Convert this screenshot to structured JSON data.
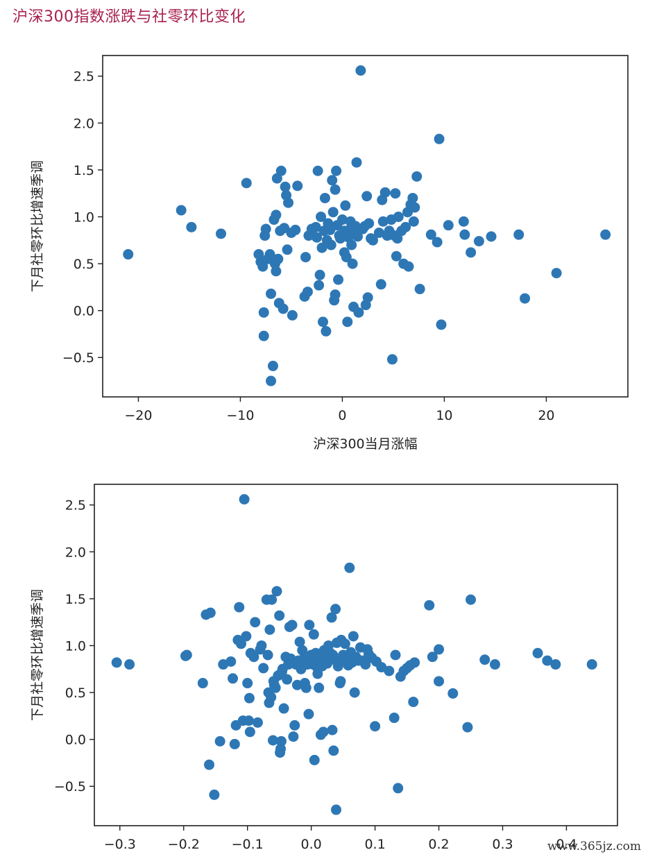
{
  "page": {
    "title": "沪深300指数涨跌与社零环比变化"
  },
  "watermark": "www.365jz.com",
  "chart_data": [
    {
      "type": "scatter",
      "xlabel": "沪深300当月涨幅",
      "ylabel": "下月社零环比增速季调",
      "xlim": [
        -23.5,
        28
      ],
      "ylim": [
        -0.92,
        2.72
      ],
      "xticks": [
        -20,
        -10,
        0,
        10,
        20
      ],
      "yticks": [
        -0.5,
        0.0,
        0.5,
        1.0,
        1.5,
        2.0,
        2.5
      ],
      "x_tick_labels": [
        "−20",
        "−10",
        "0",
        "10",
        "20"
      ],
      "y_tick_labels": [
        "−0.5",
        "0.0",
        "0.5",
        "1.0",
        "1.5",
        "2.0",
        "2.5"
      ],
      "points": [
        [
          -21.0,
          0.6
        ],
        [
          -15.8,
          1.07
        ],
        [
          -14.8,
          0.89
        ],
        [
          -11.9,
          0.82
        ],
        [
          -9.4,
          1.36
        ],
        [
          -8.2,
          0.6
        ],
        [
          -8.0,
          0.52
        ],
        [
          -7.8,
          0.47
        ],
        [
          -7.7,
          -0.27
        ],
        [
          -7.7,
          -0.02
        ],
        [
          -7.6,
          0.8
        ],
        [
          -7.5,
          0.87
        ],
        [
          -7.3,
          0.55
        ],
        [
          -7.1,
          0.6
        ],
        [
          -7.0,
          0.18
        ],
        [
          -7.0,
          -0.75
        ],
        [
          -6.8,
          -0.59
        ],
        [
          -6.7,
          0.97
        ],
        [
          -6.6,
          0.5
        ],
        [
          -6.5,
          1.02
        ],
        [
          -6.5,
          0.42
        ],
        [
          -6.4,
          1.41
        ],
        [
          -6.3,
          0.55
        ],
        [
          -6.2,
          0.08
        ],
        [
          -6.1,
          0.85
        ],
        [
          -6.0,
          1.49
        ],
        [
          -5.8,
          0.02
        ],
        [
          -5.7,
          0.88
        ],
        [
          -5.6,
          1.32
        ],
        [
          -5.5,
          1.23
        ],
        [
          -5.4,
          0.65
        ],
        [
          -5.3,
          1.15
        ],
        [
          -5.0,
          0.83
        ],
        [
          -4.9,
          -0.05
        ],
        [
          -4.6,
          0.86
        ],
        [
          -4.4,
          1.33
        ],
        [
          -3.7,
          0.15
        ],
        [
          -3.6,
          0.57
        ],
        [
          -3.4,
          0.2
        ],
        [
          -3.3,
          0.8
        ],
        [
          -3.0,
          0.87
        ],
        [
          -2.6,
          0.89
        ],
        [
          -2.5,
          0.78
        ],
        [
          -2.4,
          1.49
        ],
        [
          -2.3,
          0.27
        ],
        [
          -2.2,
          0.38
        ],
        [
          -2.1,
          1.0
        ],
        [
          -2.0,
          0.67
        ],
        [
          -1.9,
          -0.12
        ],
        [
          -1.8,
          0.85
        ],
        [
          -1.7,
          1.2
        ],
        [
          -1.6,
          -0.22
        ],
        [
          -1.5,
          0.75
        ],
        [
          -1.4,
          0.93
        ],
        [
          -1.2,
          0.86
        ],
        [
          -1.1,
          0.7
        ],
        [
          -1.0,
          1.39
        ],
        [
          -0.9,
          1.05
        ],
        [
          -0.8,
          0.11
        ],
        [
          -0.7,
          0.17
        ],
        [
          -0.7,
          1.29
        ],
        [
          -0.6,
          1.49
        ],
        [
          -0.5,
          0.91
        ],
        [
          -0.4,
          0.33
        ],
        [
          -0.3,
          0.8
        ],
        [
          -0.2,
          0.77
        ],
        [
          0.0,
          0.97
        ],
        [
          0.2,
          0.85
        ],
        [
          0.2,
          0.62
        ],
        [
          0.3,
          1.12
        ],
        [
          0.4,
          0.57
        ],
        [
          0.5,
          -0.12
        ],
        [
          0.6,
          0.78
        ],
        [
          0.7,
          0.86
        ],
        [
          0.8,
          0.95
        ],
        [
          0.9,
          0.7
        ],
        [
          1.0,
          0.5
        ],
        [
          1.1,
          0.04
        ],
        [
          1.2,
          0.85
        ],
        [
          1.3,
          0.9
        ],
        [
          1.4,
          1.58
        ],
        [
          1.5,
          0.79
        ],
        [
          1.6,
          -0.02
        ],
        [
          1.8,
          2.56
        ],
        [
          2.0,
          0.87
        ],
        [
          2.2,
          0.9
        ],
        [
          2.3,
          0.06
        ],
        [
          2.4,
          1.22
        ],
        [
          2.5,
          0.14
        ],
        [
          2.6,
          0.93
        ],
        [
          2.8,
          0.77
        ],
        [
          3.0,
          0.75
        ],
        [
          3.6,
          0.83
        ],
        [
          3.8,
          0.28
        ],
        [
          3.9,
          1.18
        ],
        [
          4.0,
          0.95
        ],
        [
          4.2,
          1.26
        ],
        [
          4.4,
          0.8
        ],
        [
          4.6,
          0.85
        ],
        [
          4.8,
          0.97
        ],
        [
          4.9,
          -0.52
        ],
        [
          5.1,
          0.8
        ],
        [
          5.2,
          1.25
        ],
        [
          5.3,
          0.58
        ],
        [
          5.4,
          0.77
        ],
        [
          5.5,
          1.0
        ],
        [
          5.8,
          0.85
        ],
        [
          6.0,
          0.5
        ],
        [
          6.2,
          0.89
        ],
        [
          6.4,
          1.05
        ],
        [
          6.5,
          0.47
        ],
        [
          6.7,
          1.13
        ],
        [
          6.9,
          1.2
        ],
        [
          7.0,
          0.95
        ],
        [
          7.1,
          1.1
        ],
        [
          7.3,
          1.43
        ],
        [
          7.6,
          0.23
        ],
        [
          8.7,
          0.81
        ],
        [
          9.3,
          0.73
        ],
        [
          9.5,
          1.83
        ],
        [
          9.7,
          -0.15
        ],
        [
          10.4,
          0.91
        ],
        [
          11.9,
          0.95
        ],
        [
          12.0,
          0.81
        ],
        [
          12.6,
          0.62
        ],
        [
          13.4,
          0.74
        ],
        [
          14.6,
          0.79
        ],
        [
          17.3,
          0.81
        ],
        [
          17.9,
          0.13
        ],
        [
          21.0,
          0.4
        ],
        [
          25.8,
          0.81
        ]
      ]
    },
    {
      "type": "scatter",
      "xlabel": "",
      "ylabel": "下月社零环比增速季调",
      "xlim": [
        -0.34,
        0.48
      ],
      "ylim": [
        -0.92,
        2.72
      ],
      "xticks": [
        -0.3,
        -0.2,
        -0.1,
        0.0,
        0.1,
        0.2,
        0.3,
        0.4
      ],
      "yticks": [
        -0.5,
        0.0,
        0.5,
        1.0,
        1.5,
        2.0,
        2.5
      ],
      "x_tick_labels": [
        "−0.3",
        "−0.2",
        "−0.1",
        "0.0",
        "0.1",
        "0.2",
        "0.3",
        "0.4"
      ],
      "y_tick_labels": [
        "−0.5",
        "0.0",
        "0.5",
        "1.0",
        "1.5",
        "2.0",
        "2.5"
      ],
      "points": [
        [
          -0.305,
          0.82
        ],
        [
          -0.285,
          0.8
        ],
        [
          -0.197,
          0.89
        ],
        [
          -0.195,
          0.9
        ],
        [
          -0.17,
          0.6
        ],
        [
          -0.165,
          1.33
        ],
        [
          -0.16,
          -0.27
        ],
        [
          -0.158,
          1.35
        ],
        [
          -0.152,
          -0.59
        ],
        [
          -0.143,
          -0.02
        ],
        [
          -0.138,
          0.8
        ],
        [
          -0.126,
          0.83
        ],
        [
          -0.123,
          0.65
        ],
        [
          -0.12,
          -0.05
        ],
        [
          -0.118,
          0.15
        ],
        [
          -0.115,
          1.06
        ],
        [
          -0.113,
          1.41
        ],
        [
          -0.11,
          1.02
        ],
        [
          -0.107,
          0.2
        ],
        [
          -0.105,
          2.56
        ],
        [
          -0.102,
          1.1
        ],
        [
          -0.1,
          0.6
        ],
        [
          -0.098,
          0.2
        ],
        [
          -0.097,
          0.44
        ],
        [
          -0.096,
          0.08
        ],
        [
          -0.095,
          0.92
        ],
        [
          -0.09,
          0.88
        ],
        [
          -0.088,
          1.25
        ],
        [
          -0.084,
          0.18
        ],
        [
          -0.08,
          0.96
        ],
        [
          -0.078,
          1.0
        ],
        [
          -0.075,
          0.76
        ],
        [
          -0.07,
          1.49
        ],
        [
          -0.068,
          0.9
        ],
        [
          -0.067,
          0.5
        ],
        [
          -0.066,
          0.39
        ],
        [
          -0.065,
          1.17
        ],
        [
          -0.063,
          0.45
        ],
        [
          -0.062,
          1.49
        ],
        [
          -0.06,
          -0.01
        ],
        [
          -0.059,
          0.62
        ],
        [
          -0.058,
          0.58
        ],
        [
          -0.056,
          0.55
        ],
        [
          -0.054,
          1.58
        ],
        [
          -0.052,
          0.68
        ],
        [
          -0.05,
          1.32
        ],
        [
          -0.049,
          -0.14
        ],
        [
          -0.048,
          -0.1
        ],
        [
          -0.047,
          -0.02
        ],
        [
          -0.046,
          0.72
        ],
        [
          -0.045,
          0.75
        ],
        [
          -0.043,
          0.33
        ],
        [
          -0.04,
          0.88
        ],
        [
          -0.038,
          0.64
        ],
        [
          -0.036,
          0.8
        ],
        [
          -0.034,
          1.2
        ],
        [
          -0.032,
          0.86
        ],
        [
          -0.03,
          1.22
        ],
        [
          -0.028,
          0.03
        ],
        [
          -0.026,
          0.15
        ],
        [
          -0.024,
          0.8
        ],
        [
          -0.022,
          0.58
        ],
        [
          -0.02,
          0.84
        ],
        [
          -0.018,
          1.04
        ],
        [
          -0.016,
          0.75
        ],
        [
          -0.014,
          0.95
        ],
        [
          -0.012,
          0.86
        ],
        [
          -0.01,
          0.6
        ],
        [
          -0.008,
          0.55
        ],
        [
          -0.006,
          0.8
        ],
        [
          -0.004,
          0.27
        ],
        [
          -0.003,
          1.22
        ],
        [
          -0.002,
          0.86
        ],
        [
          0.0,
          0.9
        ],
        [
          0.003,
          0.8
        ],
        [
          0.004,
          1.12
        ],
        [
          0.005,
          -0.22
        ],
        [
          0.007,
          0.92
        ],
        [
          0.009,
          0.77
        ],
        [
          0.01,
          0.7
        ],
        [
          0.012,
          0.55
        ],
        [
          0.013,
          0.86
        ],
        [
          0.015,
          0.05
        ],
        [
          0.017,
          0.78
        ],
        [
          0.019,
          0.08
        ],
        [
          0.02,
          0.95
        ],
        [
          0.022,
          0.87
        ],
        [
          0.025,
          0.81
        ],
        [
          0.027,
          1.0
        ],
        [
          0.03,
          0.92
        ],
        [
          0.032,
          1.3
        ],
        [
          0.033,
          0.1
        ],
        [
          0.034,
          0.9
        ],
        [
          0.035,
          -0.12
        ],
        [
          0.036,
          0.85
        ],
        [
          0.038,
          1.39
        ],
        [
          0.039,
          -0.75
        ],
        [
          0.04,
          1.03
        ],
        [
          0.042,
          0.78
        ],
        [
          0.045,
          0.6
        ],
        [
          0.046,
          0.62
        ],
        [
          0.047,
          1.06
        ],
        [
          0.049,
          0.84
        ],
        [
          0.05,
          0.9
        ],
        [
          0.053,
          1.02
        ],
        [
          0.055,
          0.84
        ],
        [
          0.058,
          0.79
        ],
        [
          0.06,
          1.83
        ],
        [
          0.062,
          0.93
        ],
        [
          0.064,
          0.82
        ],
        [
          0.066,
          1.1
        ],
        [
          0.068,
          0.5
        ],
        [
          0.07,
          0.88
        ],
        [
          0.074,
          0.84
        ],
        [
          0.077,
          0.98
        ],
        [
          0.08,
          0.84
        ],
        [
          0.085,
          0.8
        ],
        [
          0.088,
          0.96
        ],
        [
          0.09,
          0.91
        ],
        [
          0.095,
          0.87
        ],
        [
          0.1,
          0.14
        ],
        [
          0.102,
          0.83
        ],
        [
          0.11,
          0.77
        ],
        [
          0.122,
          0.73
        ],
        [
          0.13,
          0.23
        ],
        [
          0.132,
          0.9
        ],
        [
          0.136,
          -0.52
        ],
        [
          0.14,
          0.67
        ],
        [
          0.145,
          0.73
        ],
        [
          0.15,
          0.76
        ],
        [
          0.155,
          0.79
        ],
        [
          0.16,
          0.4
        ],
        [
          0.162,
          0.82
        ],
        [
          0.185,
          1.43
        ],
        [
          0.19,
          0.88
        ],
        [
          0.2,
          0.96
        ],
        [
          0.2,
          0.62
        ],
        [
          0.222,
          0.49
        ],
        [
          0.245,
          0.13
        ],
        [
          0.25,
          1.49
        ],
        [
          0.272,
          0.85
        ],
        [
          0.288,
          0.8
        ],
        [
          0.355,
          0.92
        ],
        [
          0.37,
          0.84
        ],
        [
          0.383,
          0.8
        ],
        [
          0.44,
          0.8
        ]
      ]
    }
  ]
}
